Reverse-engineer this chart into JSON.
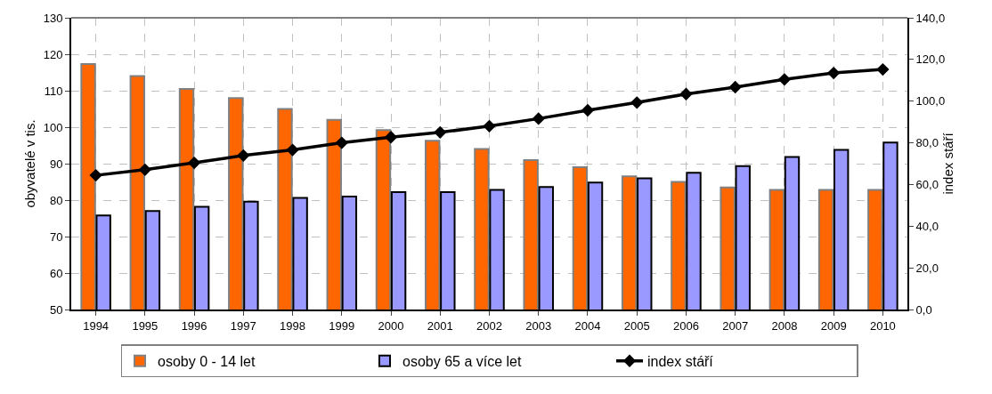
{
  "chart_data": {
    "type": "bar",
    "ylabel": "obyvatelé v tis.",
    "y2label": "index stáří",
    "categories": [
      "1994",
      "1995",
      "1996",
      "1997",
      "1998",
      "1999",
      "2000",
      "2001",
      "2002",
      "2003",
      "2004",
      "2005",
      "2006",
      "2007",
      "2008",
      "2009",
      "2010"
    ],
    "series": [
      {
        "name": "osoby 0 - 14 let",
        "color": "#ff6600",
        "values": [
          117.3,
          114,
          110.5,
          108,
          105,
          102,
          99.2,
          96.3,
          94,
          91,
          89,
          86.5,
          85,
          83.5,
          82.8,
          82.8,
          82.8
        ]
      },
      {
        "name": "osoby 65 a více let",
        "color": "#9999ff",
        "values": [
          75.8,
          77,
          78.2,
          79.6,
          80.6,
          81,
          82.2,
          82.2,
          82.8,
          83.6,
          84.8,
          86,
          87.5,
          89.3,
          91.8,
          93.8,
          95.8
        ]
      },
      {
        "name": "index stáří",
        "type": "line",
        "axis": "y2",
        "color": "#000000",
        "marker": "diamond",
        "values": [
          64.4,
          67.1,
          70.4,
          73.9,
          76.6,
          80,
          82.7,
          85,
          88,
          91.6,
          95.6,
          99.3,
          103.4,
          106.7,
          110.4,
          113.5,
          115.2
        ]
      }
    ],
    "ylim": [
      50,
      130
    ],
    "yticks": [
      50,
      60,
      70,
      80,
      90,
      100,
      110,
      120,
      130
    ],
    "y2lim": [
      0,
      140
    ],
    "y2ticks": [
      {
        "value": 0,
        "label": "0,0"
      },
      {
        "value": 20,
        "label": "20,0"
      },
      {
        "value": 40,
        "label": "40,0"
      },
      {
        "value": 60,
        "label": "60,0"
      },
      {
        "value": 80,
        "label": "80,0"
      },
      {
        "value": 100,
        "label": "100,0"
      },
      {
        "value": 120,
        "label": "120,0"
      },
      {
        "value": 140,
        "label": "140,0"
      }
    ],
    "grid": true,
    "legend": "bottom"
  }
}
